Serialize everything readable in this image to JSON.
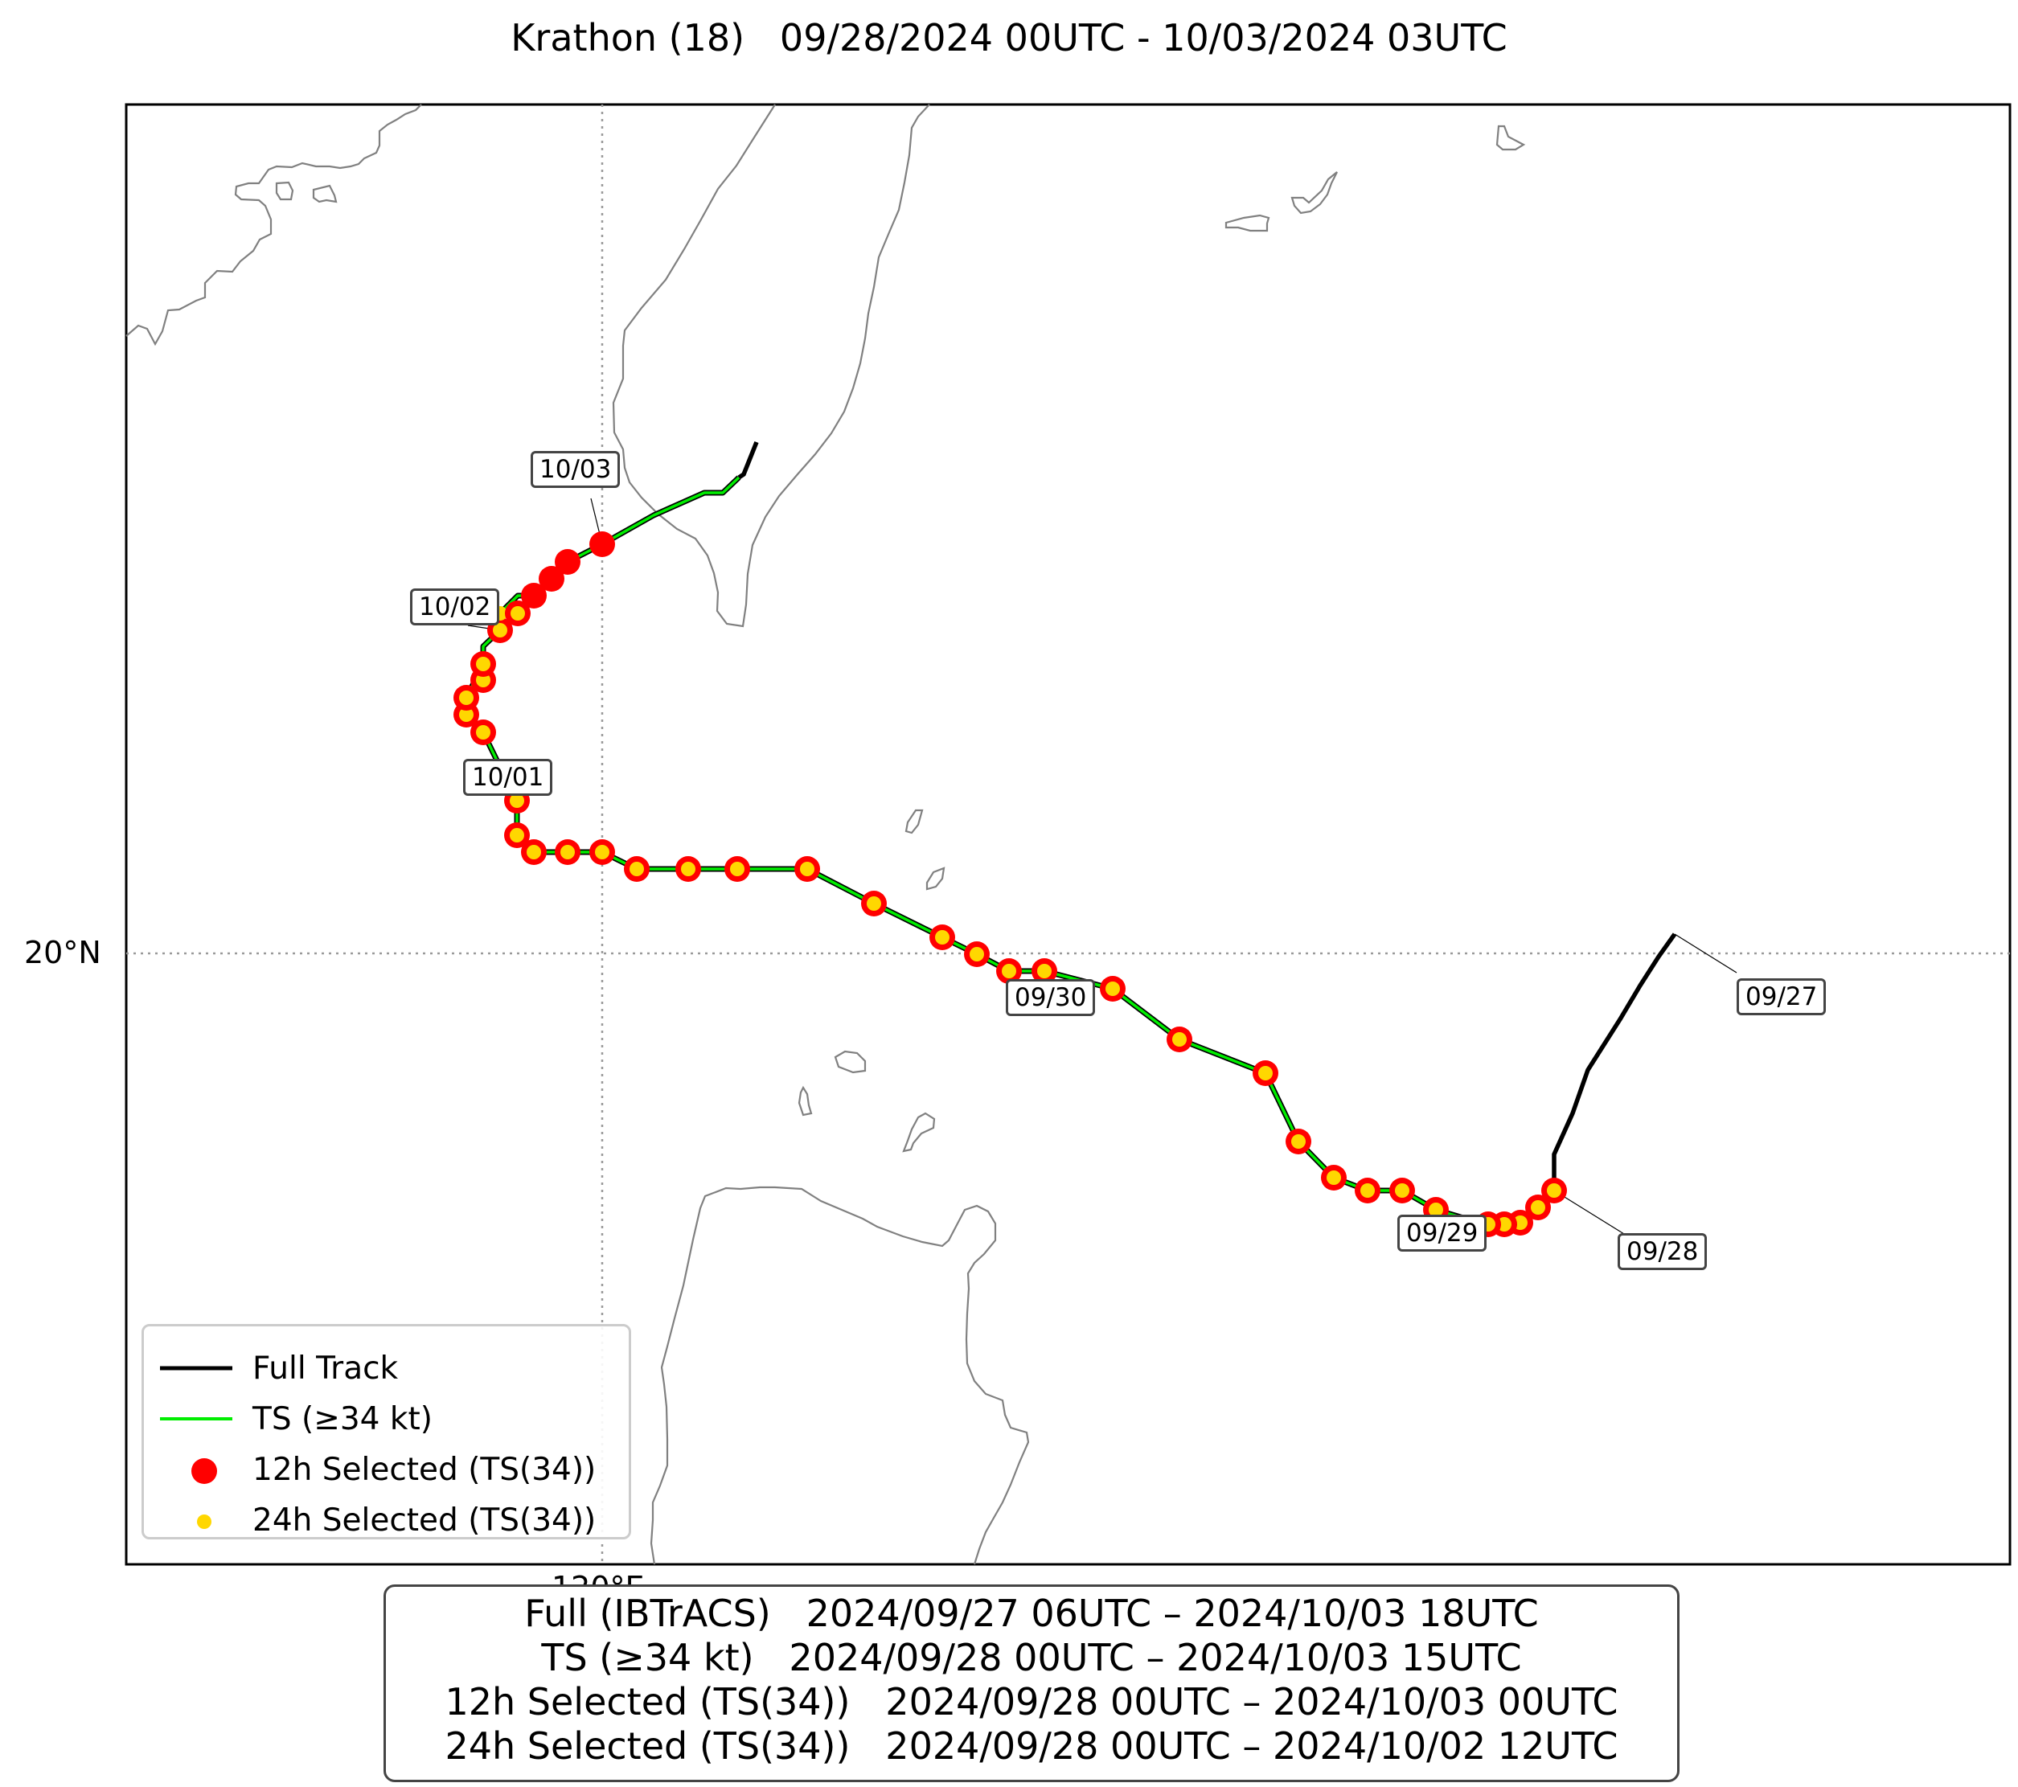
{
  "title": "Krathon (18)   09/28/2024 00UTC - 10/03/2024 03UTC",
  "axes": {
    "lat_label": "20°N",
    "lon_label": "120°E"
  },
  "legend": {
    "items": [
      {
        "label": "Full Track",
        "color": "#000000",
        "symbol": "line"
      },
      {
        "label": "TS (≥34 kt)",
        "color": "#00ee00",
        "symbol": "line"
      },
      {
        "label": "12h Selected (TS(34))",
        "color": "#ff0000",
        "symbol": "dot-large"
      },
      {
        "label": "24h Selected (TS(34))",
        "color": "#ffd700",
        "symbol": "dot-small"
      }
    ]
  },
  "date_labels": [
    "09/27",
    "09/28",
    "09/29",
    "09/30",
    "10/01",
    "10/02",
    "10/03"
  ],
  "summary": {
    "lines": [
      "Full (IBTrACS)   2024/09/27 06UTC – 2024/10/03 18UTC",
      "TS (≥34 kt)   2024/09/28 00UTC – 2024/10/03 15UTC",
      "12h Selected (TS(34))   2024/09/28 00UTC – 2024/10/03 00UTC",
      "24h Selected (TS(34))   2024/09/28 00UTC – 2024/10/02 12UTC"
    ]
  },
  "colors": {
    "full_track": "#000000",
    "ts_track": "#00ee00",
    "selected_12h": "#ff0000",
    "selected_24h": "#ffd700",
    "coastline": "#808080",
    "gridline": "#999999"
  }
}
